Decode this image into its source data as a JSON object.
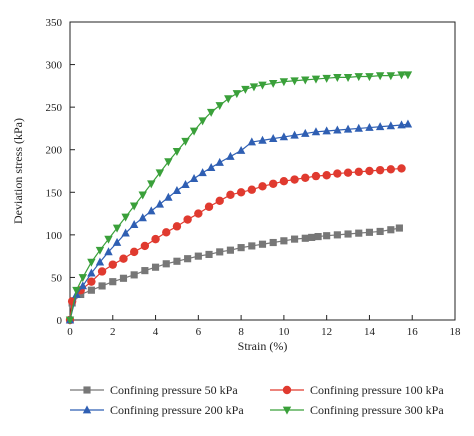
{
  "chart_data": {
    "type": "line",
    "xlabel": "Strain (%)",
    "ylabel": "Deviation stress (kPa)",
    "xlim": [
      0,
      18
    ],
    "ylim": [
      0,
      350
    ],
    "xticks": [
      0,
      2,
      4,
      6,
      8,
      10,
      12,
      14,
      16,
      18
    ],
    "yticks": [
      0,
      50,
      100,
      150,
      200,
      250,
      300,
      350
    ],
    "grid": false,
    "legend_placement": "bottom",
    "series": [
      {
        "name": "Confining pressure 50 kPa",
        "color": "#777777",
        "marker": "square",
        "x": [
          0,
          0.1,
          0.5,
          1.0,
          1.5,
          2.0,
          2.5,
          3.0,
          3.5,
          4.0,
          4.5,
          5.0,
          5.5,
          6.0,
          6.5,
          7.0,
          7.5,
          8.0,
          8.5,
          9.0,
          9.5,
          10.0,
          10.5,
          11.0,
          11.3,
          11.6,
          12.0,
          12.5,
          13.0,
          13.5,
          14.0,
          14.5,
          15.0,
          15.4
        ],
        "y": [
          0,
          20,
          30,
          35,
          40,
          45,
          49,
          53,
          58,
          62,
          66,
          69,
          72,
          75,
          77,
          80,
          82,
          85,
          87,
          89,
          91,
          93,
          95,
          96,
          97,
          98,
          99,
          100,
          101,
          102,
          103,
          104,
          106,
          108
        ]
      },
      {
        "name": "Confining pressure 100 kPa",
        "color": "#e03a2f",
        "marker": "circle",
        "x": [
          0,
          0.1,
          0.5,
          1.0,
          1.5,
          2.0,
          2.5,
          3.0,
          3.5,
          4.0,
          4.5,
          5.0,
          5.5,
          6.0,
          6.5,
          7.0,
          7.5,
          8.0,
          8.5,
          9.0,
          9.5,
          10.0,
          10.5,
          11.0,
          11.5,
          12.0,
          12.5,
          13.0,
          13.5,
          14.0,
          14.5,
          15.0,
          15.5
        ],
        "y": [
          0,
          22,
          35,
          45,
          57,
          65,
          72,
          80,
          87,
          95,
          103,
          110,
          118,
          125,
          133,
          140,
          147,
          150,
          153,
          157,
          160,
          163,
          165,
          167,
          169,
          170,
          172,
          173,
          174,
          175,
          176,
          177,
          178
        ]
      },
      {
        "name": "Confining pressure 200 kPa",
        "color": "#2f5fb3",
        "marker": "triangle-up",
        "x": [
          0,
          0.3,
          0.6,
          1.0,
          1.4,
          1.8,
          2.2,
          2.6,
          3.0,
          3.4,
          3.8,
          4.2,
          4.6,
          5.0,
          5.4,
          5.8,
          6.2,
          6.6,
          7.0,
          7.5,
          8.0,
          8.5,
          9.0,
          9.5,
          10.0,
          10.5,
          11.0,
          11.5,
          12.0,
          12.5,
          13.0,
          13.5,
          14.0,
          14.5,
          15.0,
          15.5,
          15.8
        ],
        "y": [
          0,
          30,
          40,
          55,
          68,
          80,
          91,
          102,
          112,
          120,
          128,
          136,
          144,
          152,
          159,
          166,
          173,
          179,
          185,
          192,
          199,
          209,
          211,
          213,
          215,
          217,
          219,
          221,
          222,
          223,
          224,
          225,
          226,
          227,
          228,
          229,
          230
        ]
      },
      {
        "name": "Confining pressure 300 kPa",
        "color": "#3aa03a",
        "marker": "triangle-down",
        "x": [
          0,
          0.3,
          0.6,
          1.0,
          1.4,
          1.8,
          2.2,
          2.6,
          3.0,
          3.4,
          3.8,
          4.2,
          4.6,
          5.0,
          5.4,
          5.8,
          6.2,
          6.6,
          7.0,
          7.4,
          7.8,
          8.2,
          8.6,
          9.0,
          9.5,
          10.0,
          10.5,
          11.0,
          11.5,
          12.0,
          12.5,
          13.0,
          13.5,
          14.0,
          14.5,
          15.0,
          15.5,
          15.8
        ],
        "y": [
          0,
          35,
          50,
          68,
          82,
          95,
          108,
          121,
          134,
          147,
          160,
          173,
          186,
          198,
          210,
          222,
          234,
          244,
          252,
          260,
          266,
          271,
          274,
          276,
          278,
          280,
          281,
          282,
          283,
          284,
          285,
          285,
          286,
          286,
          287,
          287,
          288,
          288
        ]
      }
    ]
  },
  "legend": {
    "items": [
      {
        "name": "Confining pressure 50 kPa",
        "color": "#777777",
        "marker": "square"
      },
      {
        "name": "Confining pressure 100 kPa",
        "color": "#e03a2f",
        "marker": "circle"
      },
      {
        "name": "Confining pressure 200 kPa",
        "color": "#2f5fb3",
        "marker": "triangle-up"
      },
      {
        "name": "Confining pressure 300 kPa",
        "color": "#3aa03a",
        "marker": "triangle-down"
      }
    ]
  }
}
